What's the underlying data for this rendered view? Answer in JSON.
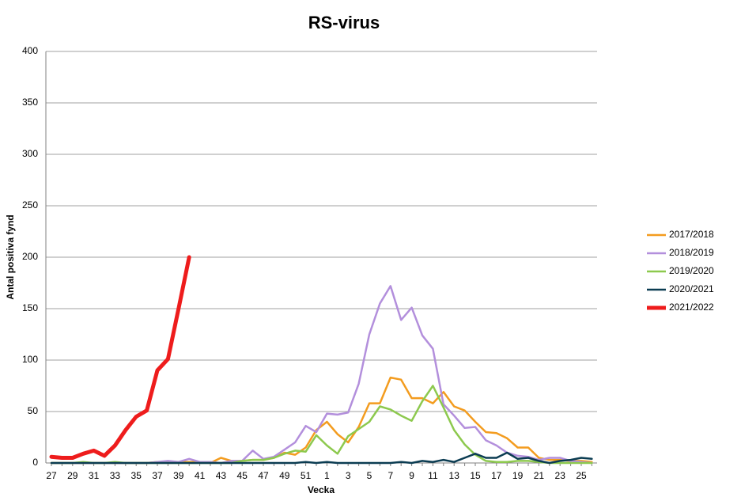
{
  "chart_data": {
    "type": "line",
    "title": "RS-virus",
    "x_label": "Vecka",
    "y_label": "Antal positiva fynd",
    "categories": [
      "27",
      null,
      "29",
      null,
      "31",
      null,
      "33",
      null,
      "35",
      null,
      "37",
      null,
      "39",
      null,
      "41",
      null,
      "43",
      null,
      "45",
      null,
      "47",
      null,
      "49",
      null,
      "51",
      null,
      "1",
      null,
      "3",
      null,
      "5",
      null,
      "7",
      null,
      "9",
      null,
      "11",
      null,
      "13",
      null,
      "15",
      null,
      "17",
      null,
      "19",
      null,
      "21",
      null,
      "23",
      null,
      "25",
      null
    ],
    "ylim": [
      0,
      400
    ],
    "yticks": [
      0,
      50,
      100,
      150,
      200,
      250,
      300,
      350,
      400
    ],
    "grid": true,
    "legend": "right",
    "series": [
      {
        "name": "2017/2018",
        "color": "#f39c1f",
        "width": 2.5,
        "values": [
          0,
          0,
          0,
          0,
          0,
          0,
          0,
          0,
          0,
          0,
          1,
          0,
          1,
          1,
          1,
          0,
          5,
          2,
          2,
          3,
          3,
          5,
          10,
          8,
          15,
          32,
          40,
          28,
          20,
          35,
          58,
          58,
          83,
          81,
          63,
          63,
          58,
          69,
          55,
          51,
          40,
          30,
          29,
          24,
          15,
          15,
          5,
          3,
          3,
          2,
          2,
          1
        ]
      },
      {
        "name": "2018/2019",
        "color": "#b38fdc",
        "width": 2.5,
        "values": [
          0,
          0,
          0,
          0,
          0,
          0,
          0,
          0,
          0,
          0,
          1,
          2,
          1,
          4,
          1,
          1,
          0,
          2,
          2,
          12,
          4,
          6,
          13,
          20,
          36,
          30,
          48,
          47,
          49,
          77,
          125,
          155,
          172,
          139,
          151,
          124,
          111,
          57,
          46,
          34,
          35,
          22,
          17,
          10,
          7,
          6,
          3,
          5,
          5,
          2,
          1,
          0
        ]
      },
      {
        "name": "2019/2020",
        "color": "#8dc94e",
        "width": 2.5,
        "values": [
          0,
          0,
          0,
          1,
          0,
          0,
          1,
          0,
          0,
          0,
          0,
          0,
          0,
          0,
          0,
          0,
          0,
          0,
          2,
          3,
          3,
          5,
          9,
          12,
          11,
          27,
          17,
          9,
          26,
          33,
          40,
          55,
          52,
          46,
          41,
          60,
          75,
          54,
          32,
          18,
          8,
          2,
          1,
          1,
          2,
          2,
          1,
          0,
          0,
          0,
          0,
          0
        ]
      },
      {
        "name": "2020/2021",
        "color": "#0b3c52",
        "width": 2.5,
        "values": [
          0,
          0,
          0,
          0,
          0,
          0,
          0,
          0,
          0,
          0,
          0,
          0,
          0,
          0,
          0,
          0,
          0,
          0,
          0,
          0,
          0,
          0,
          0,
          0,
          1,
          0,
          1,
          0,
          0,
          0,
          0,
          0,
          0,
          1,
          0,
          2,
          1,
          3,
          1,
          5,
          9,
          5,
          5,
          10,
          4,
          5,
          2,
          0,
          2,
          3,
          5,
          4
        ]
      },
      {
        "name": "2021/2022",
        "color": "#ee1c1c",
        "width": 5,
        "values": [
          6,
          5,
          5,
          9,
          12,
          7,
          17,
          32,
          45,
          51,
          90,
          101,
          150,
          200,
          null,
          null,
          null,
          null,
          null,
          null,
          null,
          null,
          null,
          null,
          null,
          null,
          null,
          null,
          null,
          null,
          null,
          null,
          null,
          null,
          null,
          null,
          null,
          null,
          null,
          null,
          null,
          null,
          null,
          null,
          null,
          null,
          null,
          null,
          null,
          null,
          null,
          null
        ]
      }
    ]
  }
}
